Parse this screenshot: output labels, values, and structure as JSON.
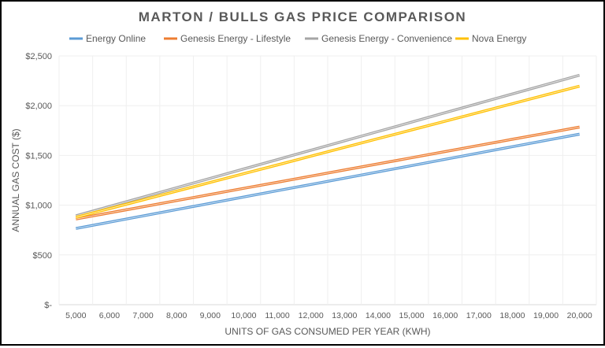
{
  "chart_data": {
    "type": "line",
    "title": "MARTON / BULLS GAS PRICE COMPARISON",
    "xlabel": "UNITS OF GAS CONSUMED PER YEAR (KWH)",
    "ylabel": "ANNUAL GAS COST ($)",
    "categories": [
      "5,000",
      "6,000",
      "7,000",
      "8,000",
      "9,000",
      "10,000",
      "11,000",
      "12,000",
      "13,000",
      "14,000",
      "15,000",
      "16,000",
      "17,000",
      "18,000",
      "19,000",
      "20,000"
    ],
    "x": [
      5000,
      6000,
      7000,
      8000,
      9000,
      10000,
      11000,
      12000,
      13000,
      14000,
      15000,
      16000,
      17000,
      18000,
      19000,
      20000
    ],
    "ylim": [
      0,
      2500
    ],
    "yticks": [
      0,
      500,
      1000,
      1500,
      2000,
      2500
    ],
    "ytick_labels": [
      "$-",
      "$500",
      "$1,000",
      "$1,500",
      "$2,000",
      "$2,500"
    ],
    "grid": true,
    "legend_position": "top",
    "series": [
      {
        "name": "Energy Online",
        "color": "#5B9BD5",
        "start": 766,
        "end": 1714
      },
      {
        "name": "Genesis Energy - Lifestyle",
        "color": "#ED7D31",
        "start": 861,
        "end": 1785
      },
      {
        "name": "Genesis Energy - Convenience",
        "color": "#A5A5A5",
        "start": 893,
        "end": 2306
      },
      {
        "name": "Nova Energy",
        "color": "#FFC000",
        "start": 877,
        "end": 2196
      }
    ]
  }
}
